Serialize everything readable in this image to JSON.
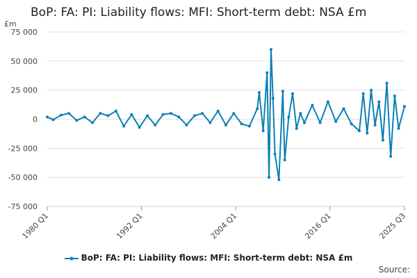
{
  "title": "BoP: FA: PI: Liability flows: MFI: Short-term debt: NSA £m",
  "source_label": "Source:",
  "chart_data": {
    "type": "line",
    "title": "BoP: FA: PI: Liability flows: MFI: Short-term debt: NSA £m",
    "ylabel": "£m",
    "xlabel": "",
    "ylim": [
      -75000,
      75000
    ],
    "y_ticks": [
      75000,
      50000,
      25000,
      0,
      -25000,
      -50000,
      -75000
    ],
    "y_tick_labels": [
      "75 000",
      "50 000",
      "25 000",
      "0",
      "-25 000",
      "-50 000",
      "-75 000"
    ],
    "x_tick_labels": [
      "1980 Q1",
      "1992 Q1",
      "2004 Q1",
      "2016 Q1",
      "2025 Q3"
    ],
    "x_range": [
      "1980 Q1",
      "2025 Q3"
    ],
    "grid": true,
    "legend_position": "bottom",
    "color": "#0a7fb5",
    "series": [
      {
        "name": "BoP: FA: PI: Liability flows: MFI: Short-term debt: NSA £m",
        "x": [
          "1980 Q1",
          "1980 Q4",
          "1981 Q4",
          "1982 Q4",
          "1983 Q4",
          "1984 Q4",
          "1985 Q4",
          "1986 Q4",
          "1987 Q4",
          "1988 Q4",
          "1989 Q4",
          "1990 Q4",
          "1991 Q4",
          "1992 Q4",
          "1993 Q4",
          "1994 Q4",
          "1995 Q4",
          "1996 Q4",
          "1997 Q4",
          "1998 Q4",
          "1999 Q4",
          "2000 Q4",
          "2001 Q4",
          "2002 Q4",
          "2003 Q4",
          "2004 Q4",
          "2005 Q4",
          "2006 Q4",
          "2007 Q1",
          "2007 Q3",
          "2008 Q1",
          "2008 Q2",
          "2008 Q3",
          "2008 Q4",
          "2009 Q1",
          "2009 Q3",
          "2010 Q1",
          "2010 Q2",
          "2010 Q4",
          "2011 Q2",
          "2011 Q4",
          "2012 Q2",
          "2012 Q4",
          "2013 Q4",
          "2014 Q4",
          "2015 Q4",
          "2016 Q4",
          "2017 Q4",
          "2018 Q4",
          "2019 Q4",
          "2020 Q2",
          "2020 Q4",
          "2021 Q2",
          "2021 Q4",
          "2022 Q2",
          "2022 Q4",
          "2023 Q2",
          "2023 Q4",
          "2024 Q2",
          "2024 Q4",
          "2025 Q3"
        ],
        "values": [
          2000,
          -500,
          3500,
          5000,
          -1000,
          2000,
          -3000,
          5000,
          3000,
          7000,
          -6000,
          4000,
          -7000,
          3000,
          -5000,
          4000,
          5000,
          2000,
          -5000,
          3000,
          5000,
          -3000,
          7000,
          -5000,
          5000,
          -4000,
          -6000,
          9000,
          23000,
          -10000,
          40000,
          -50000,
          60000,
          18000,
          -30000,
          -52000,
          24000,
          -35000,
          2000,
          22000,
          -8000,
          5000,
          -3000,
          12000,
          -3000,
          15000,
          -2000,
          9000,
          -4000,
          -10000,
          22000,
          -12000,
          25000,
          -5000,
          15000,
          -18000,
          31000,
          -32000,
          20000,
          -8000,
          11000
        ]
      }
    ]
  }
}
